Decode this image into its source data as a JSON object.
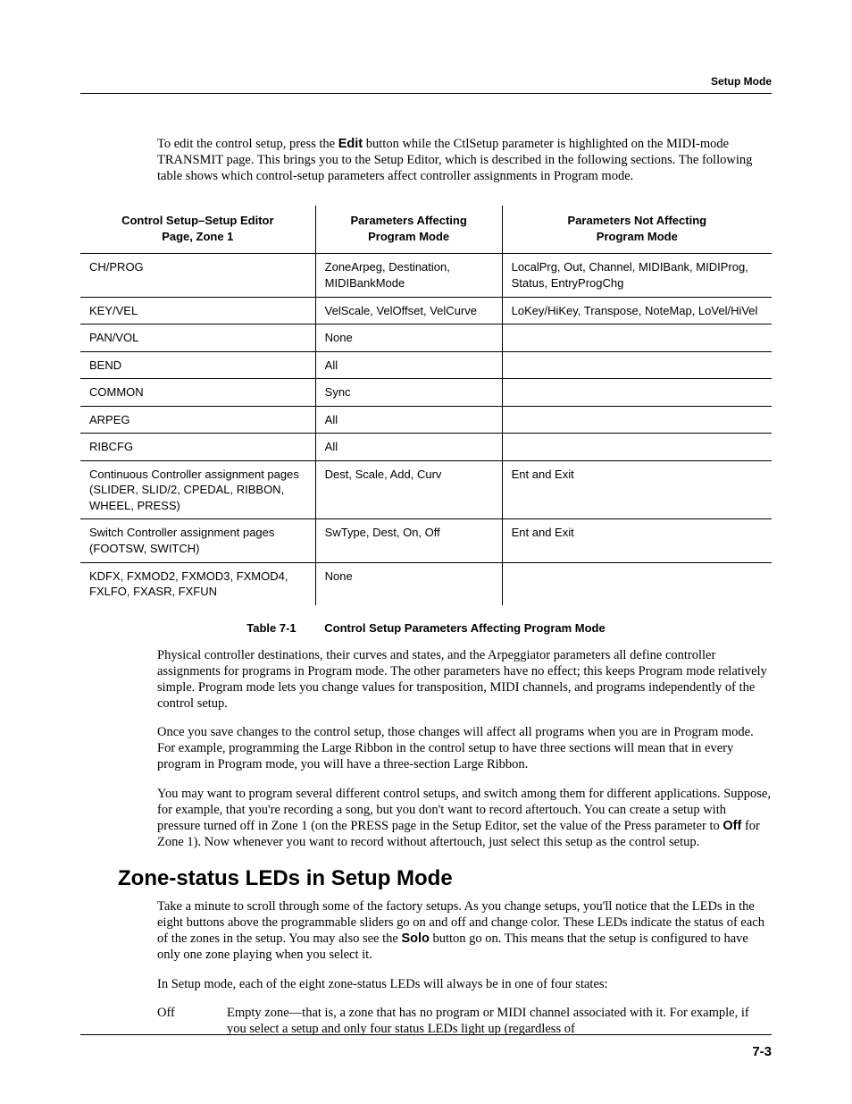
{
  "running_head": "Setup Mode",
  "intro_para_parts": {
    "before_edit": "To edit the control setup, press the ",
    "edit_word": "Edit",
    "after_edit": " button while the CtlSetup parameter is highlighted on the MIDI-mode TRANSMIT page. This brings you to the Setup Editor, which is described in the following sections. The following table shows which control-setup parameters affect controller assignments in Program mode."
  },
  "table": {
    "headers": {
      "c1_l1": "Control Setup–Setup Editor",
      "c1_l2": "Page, Zone 1",
      "c2_l1": "Parameters Affecting",
      "c2_l2": "Program Mode",
      "c3_l1": "Parameters Not Affecting",
      "c3_l2": "Program Mode"
    },
    "rows": [
      {
        "c1": "CH/PROG",
        "c2": "ZoneArpeg, Destination, MIDIBankMode",
        "c3": "LocalPrg, Out, Channel, MIDIBank, MIDIProg, Status, EntryProgChg"
      },
      {
        "c1": "KEY/VEL",
        "c2": "VelScale, VelOffset, VelCurve",
        "c3": "LoKey/HiKey, Transpose, NoteMap, LoVel/HiVel"
      },
      {
        "c1": "PAN/VOL",
        "c2": "None",
        "c3": ""
      },
      {
        "c1": "BEND",
        "c2": "All",
        "c3": ""
      },
      {
        "c1": "COMMON",
        "c2": "Sync",
        "c3": ""
      },
      {
        "c1": "ARPEG",
        "c2": "All",
        "c3": ""
      },
      {
        "c1": "RIBCFG",
        "c2": "All",
        "c3": ""
      },
      {
        "c1": "Continuous Controller assignment pages (SLIDER, SLID/2, CPEDAL, RIBBON, WHEEL, PRESS)",
        "c2": "Dest, Scale, Add, Curv",
        "c3": "Ent and Exit"
      },
      {
        "c1": "Switch Controller assignment pages (FOOTSW, SWITCH)",
        "c2": "SwType, Dest, On, Off",
        "c3": "Ent and Exit"
      },
      {
        "c1": "KDFX, FXMOD2, FXMOD3, FXMOD4, FXLFO, FXASR, FXFUN",
        "c2": "None",
        "c3": ""
      }
    ]
  },
  "table_caption_num": "Table 7-1",
  "table_caption_text": "Control Setup Parameters Affecting Program Mode",
  "para2": "Physical controller destinations, their curves and states, and the Arpeggiator parameters all define controller assignments for programs in Program mode. The other parameters have no effect; this keeps Program mode relatively simple. Program mode lets you change values for transposition, MIDI channels, and programs independently of the control setup.",
  "para3": "Once you save changes to the control setup, those changes will affect all programs when you are in Program mode. For example, programming the Large Ribbon in the control setup to have three sections will mean that in every program in Program mode, you will have a three-section Large Ribbon.",
  "para4_parts": {
    "before_off": "You may want to program several different control setups, and switch among them for different applications. Suppose, for example, that you're recording a song, but you don't want to record aftertouch. You can create a setup with pressure turned off in Zone 1 (on the PRESS page in the Setup Editor, set the value of the Press parameter to ",
    "off_word": "Off",
    "after_off": " for Zone 1). Now whenever you want to record without aftertouch, just select this setup as the control setup."
  },
  "section_heading": "Zone-status LEDs in Setup Mode",
  "para5_parts": {
    "before_solo": "Take a minute to scroll through some of the factory setups. As you change setups, you'll notice that the LEDs in the eight buttons above the programmable sliders go on and off and change color. These LEDs indicate the status of each of the zones in the setup. You may also see the ",
    "solo_word": "Solo",
    "after_solo": " button go on. This means that the setup is configured to have only one zone playing when you select it."
  },
  "para6": "In Setup mode, each of the eight zone-status LEDs will always be in one of four states:",
  "dl": {
    "term": "Off",
    "def": "Empty zone—that is, a zone that has no program or MIDI channel associated with it. For example, if you select a setup and only four status LEDs light up (regardless of"
  },
  "page_number": "7-3"
}
